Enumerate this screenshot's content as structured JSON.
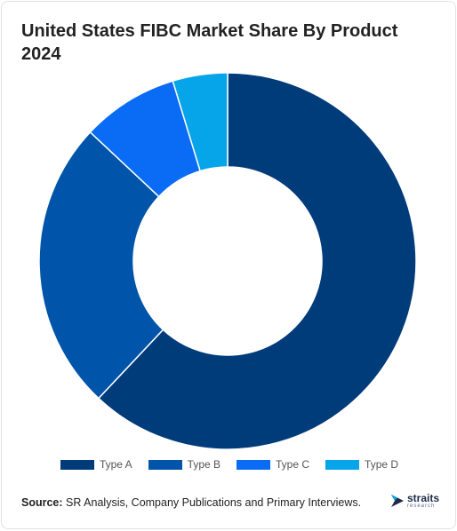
{
  "title": "United States FIBC Market Share By Product 2024",
  "chart_data": {
    "type": "pie",
    "donut": true,
    "categories": [
      "Type A",
      "Type B",
      "Type C",
      "Type D"
    ],
    "values": [
      62,
      25,
      8.3,
      4.7
    ],
    "colors": [
      "#003b7a",
      "#0055aa",
      "#0a6cf5",
      "#06a4e8"
    ],
    "legend_position": "bottom"
  },
  "source": {
    "label": "Source:",
    "text": "SR Analysis, Company Publications and Primary Interviews."
  },
  "logo": {
    "name": "straits",
    "tagline": "research"
  }
}
